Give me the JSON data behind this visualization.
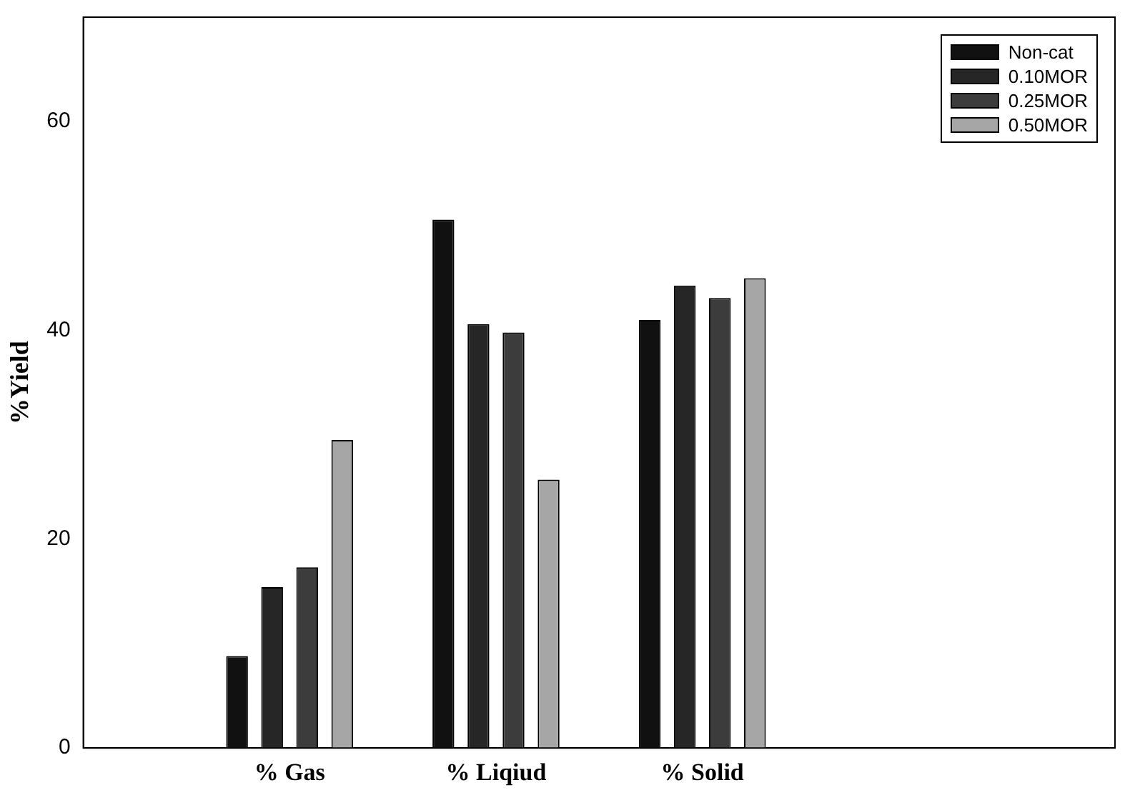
{
  "chart_data": {
    "type": "bar",
    "ylabel": "%Yield",
    "categories": [
      null,
      "% Gas",
      "% Liqiud",
      "% Solid",
      null,
      null
    ],
    "series": [
      {
        "name": "Non-cat",
        "color": "#111111",
        "values": [
          null,
          8.8,
          50.6,
          41,
          null,
          null
        ]
      },
      {
        "name": "0.10MOR",
        "color": "#262626",
        "values": [
          null,
          15.4,
          40.6,
          44.3,
          null,
          null
        ]
      },
      {
        "name": "0.25MOR",
        "color": "#3c3c3c",
        "values": [
          null,
          17.3,
          39.8,
          43.1,
          null,
          null
        ]
      },
      {
        "name": "0.50MOR",
        "color": "#a6a6a6",
        "values": [
          null,
          29.5,
          25.7,
          45,
          null,
          null
        ]
      }
    ],
    "ylim": [
      0,
      70
    ],
    "yticks": [
      0,
      20,
      40,
      60
    ],
    "grid": false,
    "legend": "top right"
  }
}
